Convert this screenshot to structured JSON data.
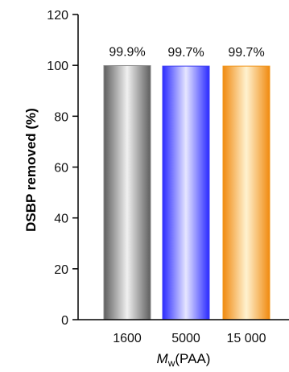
{
  "chart_data": {
    "type": "bar",
    "categories": [
      "1600",
      "5000",
      "15 000"
    ],
    "values": [
      99.9,
      99.7,
      99.7
    ],
    "data_labels": [
      "99.9%",
      "99.7%",
      "99.7%"
    ],
    "ylabel": "DSBP removed (%)",
    "xlabel": {
      "symbol": "M",
      "subscript": "w",
      "suffix": "(PAA)"
    },
    "ylim": [
      0,
      120
    ],
    "yticks": [
      0,
      20,
      40,
      60,
      80,
      100,
      120
    ],
    "grid": false,
    "bar_colors": [
      "#8a8a8a",
      "#3f3ff0",
      "#f0941a"
    ]
  }
}
